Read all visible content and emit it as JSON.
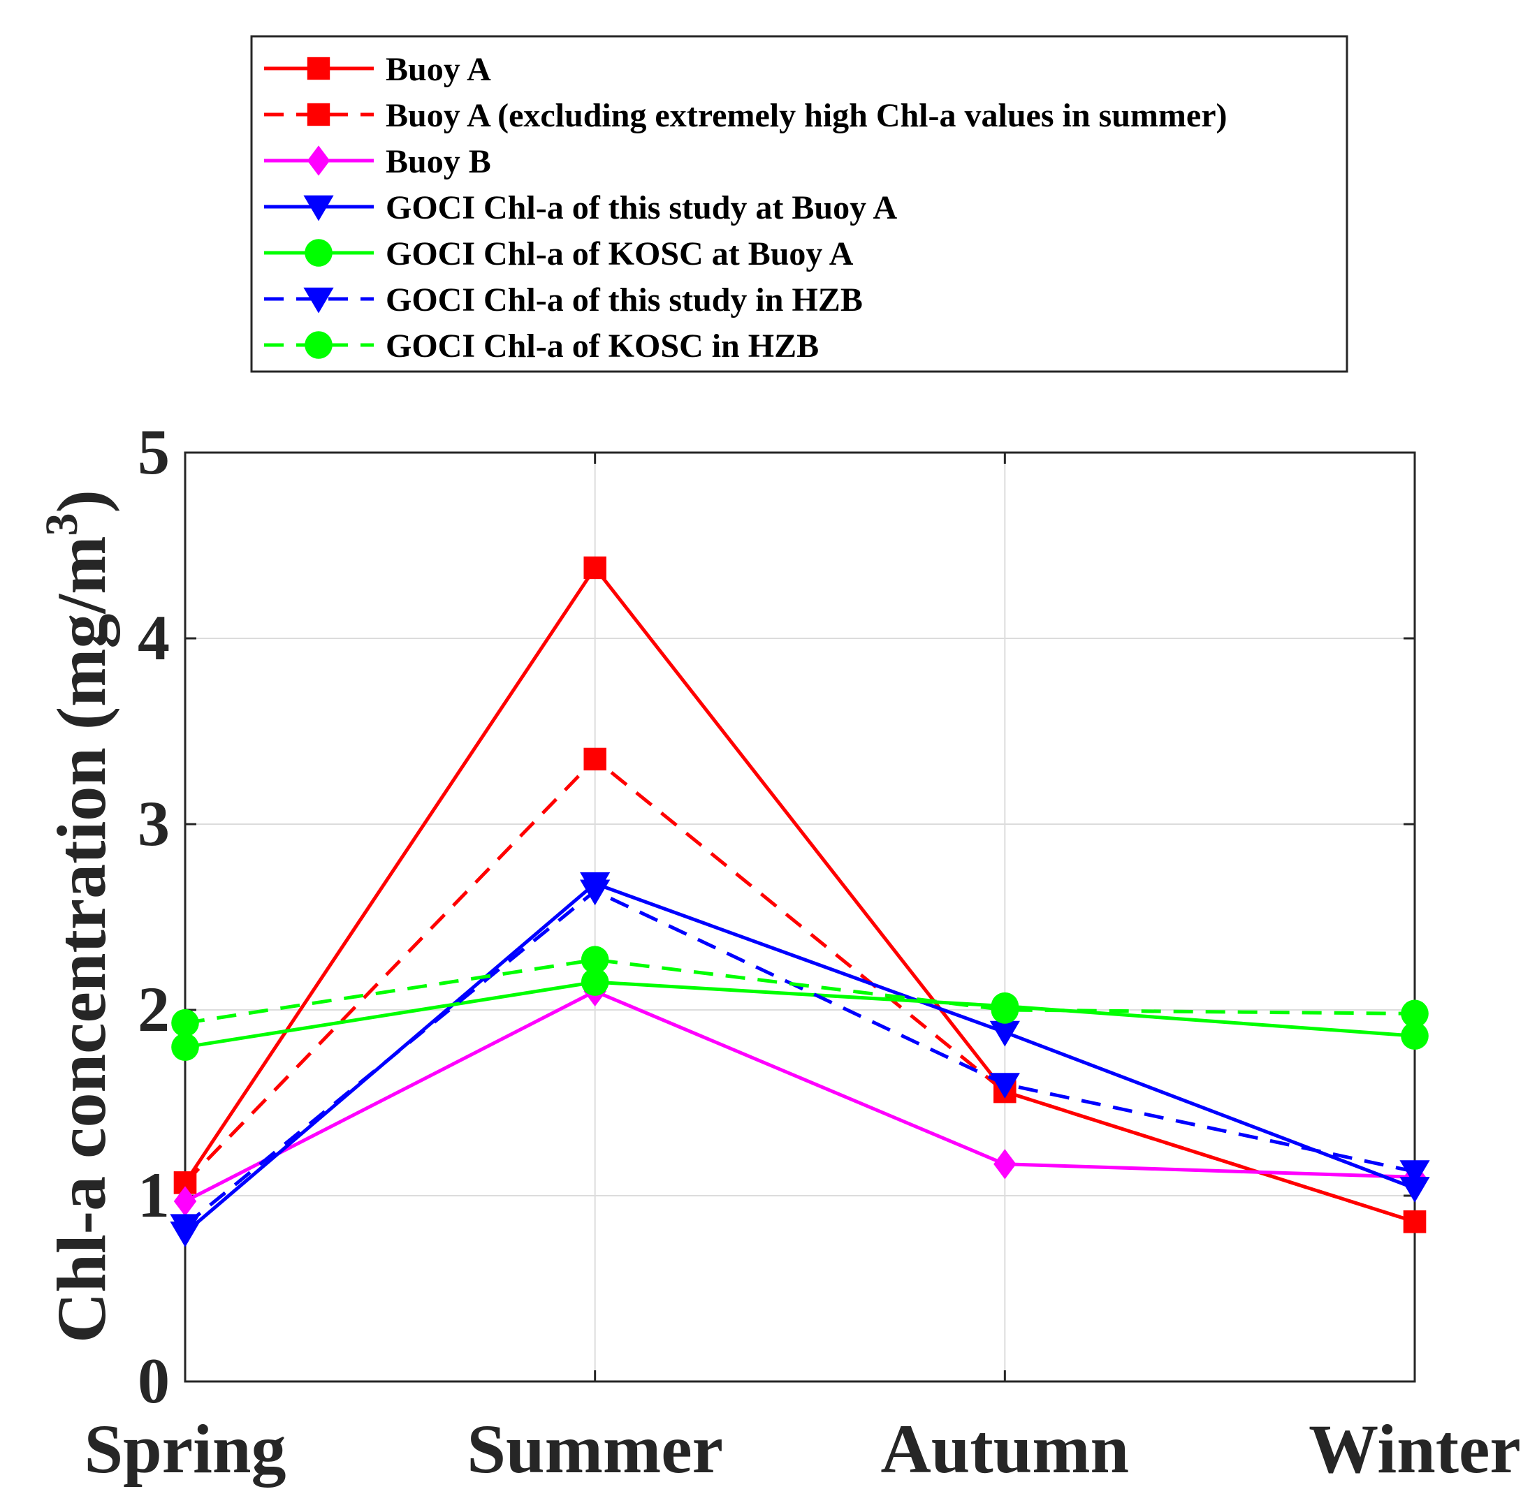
{
  "chart_data": {
    "type": "line",
    "title": "",
    "xlabel": "",
    "ylabel": "Chl-a concentration (mg/m",
    "ylabel_superscript": "3",
    "ylabel_suffix": ")",
    "categories": [
      "Spring",
      "Summer",
      "Autumn",
      "Winter"
    ],
    "ylim": [
      0,
      5
    ],
    "yticks": [
      "0",
      "1",
      "2",
      "3",
      "4",
      "5"
    ],
    "grid": true,
    "legend_position": "top",
    "series": [
      {
        "name": "Buoy A",
        "values": [
          1.07,
          4.38,
          1.56,
          0.86
        ],
        "color": "#ff0000",
        "dash": "solid",
        "marker": "square"
      },
      {
        "name": "Buoy A (excluding extremely high Chl-a values in summer)",
        "values": [
          1.07,
          3.35,
          1.56,
          0.86
        ],
        "color": "#ff0000",
        "dash": "dashed",
        "marker": "square"
      },
      {
        "name": "Buoy B",
        "values": [
          0.97,
          2.1,
          1.17,
          1.1
        ],
        "color": "#ff00ff",
        "dash": "solid",
        "marker": "diamond"
      },
      {
        "name": "GOCI Chl-a of this study at Buoy A",
        "values": [
          0.8,
          2.68,
          1.88,
          1.04
        ],
        "color": "#0000ff",
        "dash": "solid",
        "marker": "triangle-down"
      },
      {
        "name": "GOCI Chl-a of KOSC at Buoy A",
        "values": [
          1.8,
          2.15,
          2.02,
          1.86
        ],
        "color": "#00ff00",
        "dash": "solid",
        "marker": "circle"
      },
      {
        "name": "GOCI Chl-a of this study in HZB",
        "values": [
          0.84,
          2.64,
          1.6,
          1.13
        ],
        "color": "#0000ff",
        "dash": "dashed",
        "marker": "triangle-down"
      },
      {
        "name": "GOCI Chl-a of KOSC in HZB",
        "values": [
          1.93,
          2.27,
          2.0,
          1.98
        ],
        "color": "#00ff00",
        "dash": "dashed",
        "marker": "circle"
      }
    ]
  }
}
